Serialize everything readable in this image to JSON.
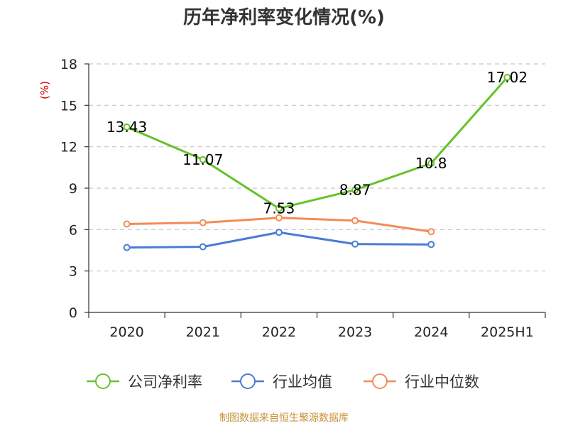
{
  "title": "历年净利率变化情况(%)",
  "source": "制图数据来自恒生聚源数据库",
  "colors": {
    "company": "#66c22a",
    "industry_avg": "#4a7bd6",
    "industry_median": "#f58b57",
    "unit_label": "#cc0000",
    "source": "#c8923b"
  },
  "chart_data": {
    "type": "line",
    "title": "历年净利率变化情况(%)",
    "ylabel": "(%)",
    "xlabel": "",
    "categories": [
      "2020",
      "2021",
      "2022",
      "2023",
      "2024",
      "2025H1"
    ],
    "ylim": [
      0,
      18
    ],
    "yticks": [
      0,
      3,
      6,
      9,
      12,
      15,
      18
    ],
    "grid": true,
    "legend_position": "bottom",
    "series": [
      {
        "name": "公司净利率",
        "color": "#66c22a",
        "values": [
          13.43,
          11.07,
          7.53,
          8.87,
          10.8,
          17.02
        ],
        "labels": [
          "13.43",
          "11.07",
          "7.53",
          "8.87",
          "10.8",
          "17.02"
        ]
      },
      {
        "name": "行业均值",
        "color": "#4a7bd6",
        "values": [
          4.7,
          4.75,
          5.8,
          4.95,
          4.92,
          null
        ]
      },
      {
        "name": "行业中位数",
        "color": "#f58b57",
        "values": [
          6.4,
          6.5,
          6.85,
          6.65,
          5.85,
          null
        ]
      }
    ]
  }
}
